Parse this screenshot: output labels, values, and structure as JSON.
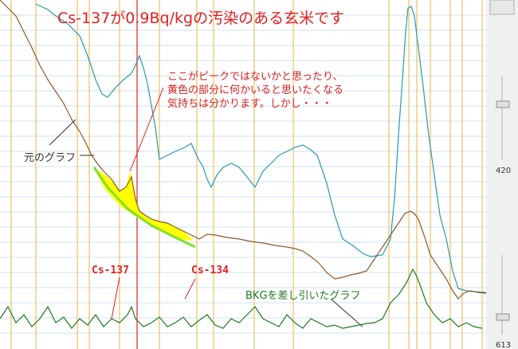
{
  "title": "Cs-137が0.9Bq/kgの汚染のある玄米です",
  "annotation": [
    "ここがピークではないかと思ったり、",
    "黄色の部分に何かいると思いたくなる",
    "気持ちは分かります。しかし・・・"
  ],
  "labels": {
    "original": "元のグラフ",
    "cs137": "Cs-137",
    "cs134": "Cs-134",
    "bkg": "BKGを差し引いたグラフ"
  },
  "side_panel": {
    "value_top": "420",
    "value_bottom": "613"
  }
}
